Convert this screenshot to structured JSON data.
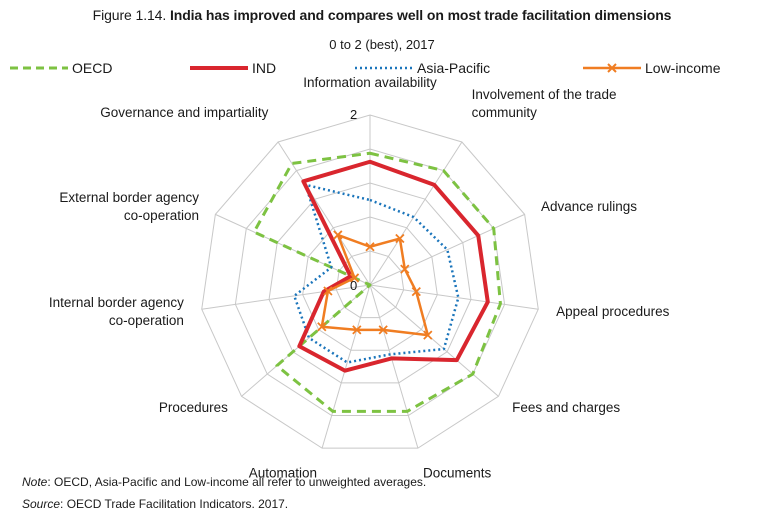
{
  "figure": {
    "number": "Figure 1.14.",
    "title": "India has improved and compares well on most trade facilitation dimensions",
    "subtitle": "0 to 2 (best), 2017"
  },
  "colors": {
    "OECD": "#7dc242",
    "IND": "#d9262e",
    "Asia-Pacific": "#1b75bb",
    "Low-income": "#f07d22",
    "grid": "#c8c8c8"
  },
  "chart_data": {
    "type": "radar",
    "axes": [
      "Information availability",
      "Involvement of the trade community",
      "Advance rulings",
      "Appeal procedures",
      "Fees and charges",
      "Documents",
      "Automation",
      "Procedures",
      "Internal border agency co-operation",
      "External border agency co-operation",
      "Governance and impartiality"
    ],
    "axis_label_lines": [
      [
        "Information availability"
      ],
      [
        "Involvement of the trade",
        "community"
      ],
      [
        "Advance rulings"
      ],
      [
        "Appeal procedures"
      ],
      [
        "Fees and charges"
      ],
      [
        "Documents"
      ],
      [
        "Automation"
      ],
      [
        "Procedures"
      ],
      [
        "Internal border agency",
        "co-operation"
      ],
      [
        "External border agency",
        "co-operation"
      ],
      [
        "Governance and impartiality"
      ]
    ],
    "rlim": [
      0,
      2
    ],
    "tick_labels": [
      "0",
      "2"
    ],
    "grid_levels": 5,
    "legend_position": "top",
    "series": [
      {
        "name": "OECD",
        "style": "dashed",
        "values": [
          1.55,
          1.6,
          1.6,
          1.55,
          1.6,
          1.55,
          1.55,
          1.45,
          0.0,
          1.5,
          1.7
        ]
      },
      {
        "name": "IND",
        "style": "solid",
        "values": [
          1.45,
          1.4,
          1.4,
          1.4,
          1.35,
          0.9,
          1.05,
          1.1,
          0.55,
          0.25,
          1.45
        ]
      },
      {
        "name": "Asia-Pacific",
        "style": "dotted",
        "values": [
          1.0,
          0.95,
          1.0,
          1.05,
          1.15,
          0.85,
          0.95,
          0.95,
          0.9,
          0.5,
          1.4
        ]
      },
      {
        "name": "Low-income",
        "style": "cross-markers",
        "values": [
          0.45,
          0.65,
          0.45,
          0.55,
          0.9,
          0.55,
          0.55,
          0.75,
          0.5,
          0.2,
          0.7
        ]
      }
    ]
  },
  "notes": {
    "note_label": "Note",
    "note_text": ": OECD, Asia-Pacific and Low-income all refer to unweighted averages.",
    "source_label": "Source",
    "source_text": ": OECD Trade Facilitation Indicators. 2017."
  }
}
